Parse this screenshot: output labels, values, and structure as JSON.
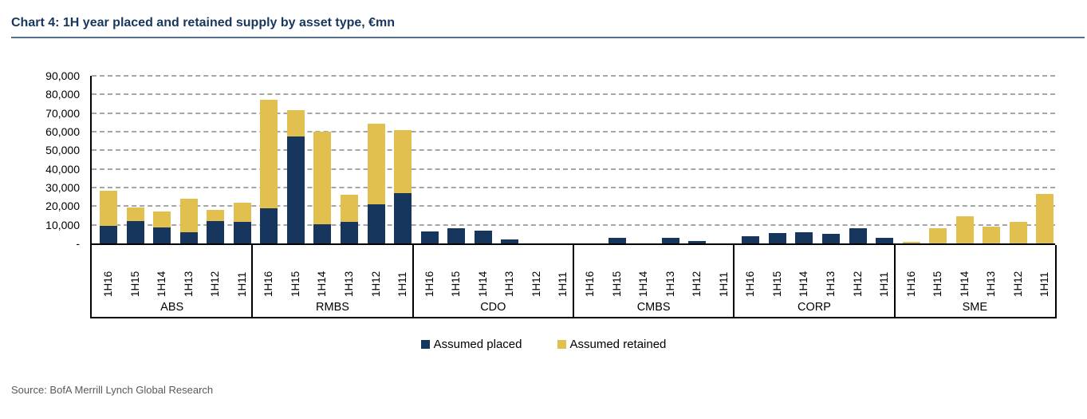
{
  "title": "Chart 4: 1H year placed and retained supply by asset type, €mn",
  "source": "Source: BofA Merrill Lynch Global Research",
  "legend": {
    "items": [
      {
        "label": "Assumed placed",
        "color": "#17365D"
      },
      {
        "label": "Assumed retained",
        "color": "#E2C04F"
      }
    ]
  },
  "colors": {
    "placed": "#17365D",
    "retained": "#E2C04F",
    "title": "#17365D",
    "title_rule": "#55708E",
    "gridline": "#A6A6A6",
    "axis": "#000000",
    "source_text": "#595959"
  },
  "chart_data": {
    "type": "bar",
    "stacked": true,
    "title": "Chart 4: 1H year placed and retained supply by asset type, €mn",
    "categories": [
      "ABS",
      "RMBS",
      "CDO",
      "CMBS",
      "CORP",
      "SME"
    ],
    "x_within_group": [
      "1H16",
      "1H15",
      "1H14",
      "1H13",
      "1H12",
      "1H11"
    ],
    "series": [
      {
        "name": "Assumed placed",
        "color": "#17365D",
        "values": [
          [
            9500,
            12000,
            8500,
            6000,
            12000,
            11500
          ],
          [
            19000,
            57500,
            10500,
            11500,
            21000,
            27000
          ],
          [
            6500,
            8000,
            7000,
            2000,
            0,
            0
          ],
          [
            0,
            3000,
            0,
            3000,
            1300,
            0
          ],
          [
            4000,
            5500,
            6000,
            5000,
            8000,
            3000
          ],
          [
            0,
            0,
            0,
            0,
            0,
            0
          ]
        ]
      },
      {
        "name": "Assumed retained",
        "color": "#E2C04F",
        "values": [
          [
            19000,
            7500,
            8500,
            18000,
            6000,
            10500
          ],
          [
            58000,
            14000,
            49500,
            14500,
            43500,
            34000
          ],
          [
            0,
            0,
            0,
            0,
            0,
            0
          ],
          [
            0,
            0,
            0,
            0,
            0,
            0
          ],
          [
            0,
            0,
            0,
            0,
            0,
            0
          ],
          [
            1000,
            8000,
            14500,
            9000,
            11500,
            26500
          ]
        ]
      }
    ],
    "ylim": [
      0,
      90000
    ],
    "ytick_step": 10000,
    "ytick_labels": [
      "-",
      "10,000",
      "20,000",
      "30,000",
      "40,000",
      "50,000",
      "60,000",
      "70,000",
      "80,000",
      "90,000"
    ],
    "grid": "horizontal dashed",
    "legend_position": "bottom center"
  }
}
